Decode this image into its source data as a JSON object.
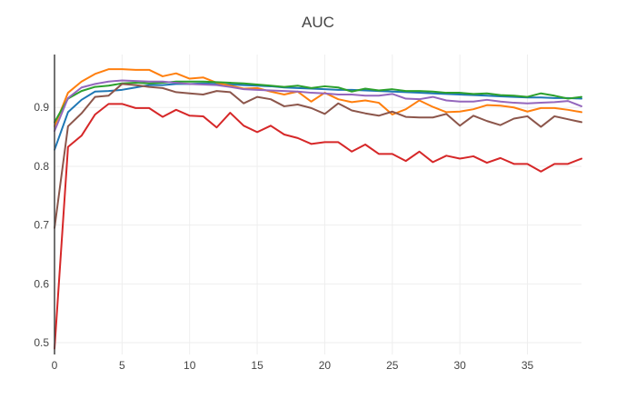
{
  "chart_data": {
    "type": "line",
    "title": "AUC",
    "xlabel": "",
    "ylabel": "",
    "xlim": [
      0,
      39
    ],
    "ylim": [
      0.48,
      0.99
    ],
    "xticks": [
      0,
      5,
      10,
      15,
      20,
      25,
      30,
      35
    ],
    "yticks": [
      0.5,
      0.6,
      0.7,
      0.8,
      0.9
    ],
    "ytick_labels": [
      "0.5",
      "0.6",
      "0.7",
      "0.8",
      "0.9"
    ],
    "grid": true,
    "legend": "none",
    "series": [
      {
        "color": "#1f77b4",
        "values": [
          0.828,
          0.892,
          0.913,
          0.927,
          0.928,
          0.93,
          0.934,
          0.938,
          0.938,
          0.94,
          0.94,
          0.941,
          0.94,
          0.939,
          0.938,
          0.937,
          0.936,
          0.934,
          0.933,
          0.932,
          0.931,
          0.93,
          0.93,
          0.929,
          0.928,
          0.927,
          0.926,
          0.925,
          0.924,
          0.923,
          0.922,
          0.921,
          0.92,
          0.919,
          0.918,
          0.917,
          0.917,
          0.916,
          0.916,
          0.915
        ]
      },
      {
        "color": "#ff7f0e",
        "values": [
          0.868,
          0.925,
          0.944,
          0.957,
          0.965,
          0.965,
          0.964,
          0.964,
          0.953,
          0.958,
          0.949,
          0.951,
          0.942,
          0.937,
          0.932,
          0.933,
          0.927,
          0.922,
          0.927,
          0.91,
          0.925,
          0.914,
          0.909,
          0.912,
          0.908,
          0.888,
          0.897,
          0.912,
          0.901,
          0.892,
          0.893,
          0.897,
          0.904,
          0.903,
          0.9,
          0.893,
          0.899,
          0.899,
          0.896,
          0.892
        ]
      },
      {
        "color": "#2ca02c",
        "values": [
          0.875,
          0.915,
          0.928,
          0.935,
          0.937,
          0.941,
          0.942,
          0.941,
          0.942,
          0.944,
          0.944,
          0.944,
          0.943,
          0.942,
          0.941,
          0.939,
          0.937,
          0.935,
          0.937,
          0.933,
          0.936,
          0.934,
          0.927,
          0.932,
          0.929,
          0.931,
          0.928,
          0.928,
          0.927,
          0.925,
          0.925,
          0.923,
          0.924,
          0.921,
          0.92,
          0.918,
          0.924,
          0.92,
          0.915,
          0.918
        ]
      },
      {
        "color": "#d62728",
        "values": [
          0.49,
          0.833,
          0.852,
          0.888,
          0.906,
          0.906,
          0.899,
          0.899,
          0.884,
          0.896,
          0.886,
          0.885,
          0.866,
          0.891,
          0.869,
          0.858,
          0.869,
          0.854,
          0.848,
          0.838,
          0.841,
          0.841,
          0.825,
          0.837,
          0.821,
          0.821,
          0.809,
          0.825,
          0.807,
          0.818,
          0.813,
          0.817,
          0.806,
          0.814,
          0.804,
          0.804,
          0.791,
          0.804,
          0.804,
          0.813
        ]
      },
      {
        "color": "#9467bd",
        "values": [
          0.86,
          0.916,
          0.934,
          0.94,
          0.944,
          0.946,
          0.945,
          0.944,
          0.944,
          0.942,
          0.94,
          0.939,
          0.938,
          0.935,
          0.931,
          0.93,
          0.929,
          0.928,
          0.927,
          0.925,
          0.924,
          0.922,
          0.922,
          0.92,
          0.92,
          0.923,
          0.915,
          0.914,
          0.918,
          0.912,
          0.91,
          0.91,
          0.913,
          0.91,
          0.908,
          0.907,
          0.908,
          0.909,
          0.911,
          0.902
        ]
      },
      {
        "color": "#8c564b",
        "values": [
          0.695,
          0.868,
          0.89,
          0.918,
          0.92,
          0.94,
          0.938,
          0.935,
          0.933,
          0.926,
          0.924,
          0.922,
          0.928,
          0.926,
          0.907,
          0.918,
          0.914,
          0.902,
          0.905,
          0.899,
          0.889,
          0.907,
          0.895,
          0.89,
          0.886,
          0.893,
          0.884,
          0.883,
          0.883,
          0.889,
          0.869,
          0.886,
          0.877,
          0.87,
          0.881,
          0.885,
          0.867,
          0.885,
          0.88,
          0.875
        ]
      }
    ]
  }
}
